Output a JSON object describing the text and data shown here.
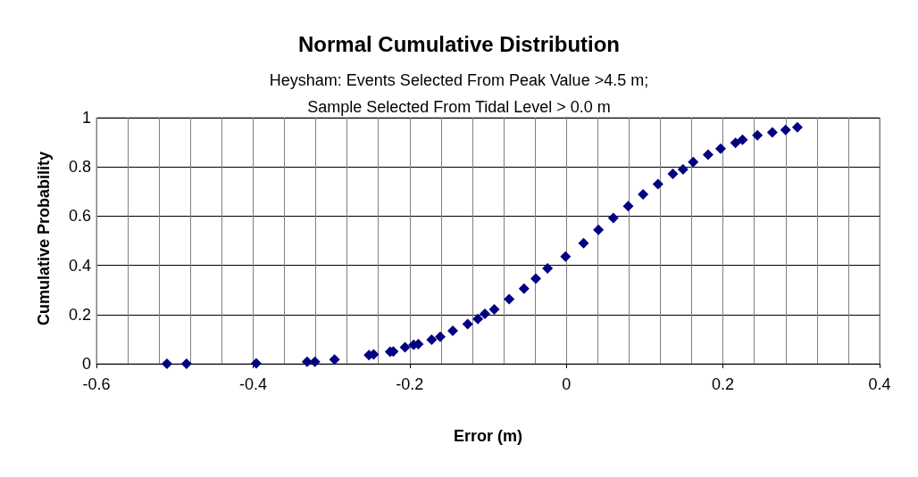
{
  "chart_data": {
    "type": "scatter",
    "title": "Normal Cumulative Distribution",
    "subtitle": "Heysham: Events Selected From Peak Value >4.5 m;\nSample Selected From Tidal Level > 0.0 m",
    "xlabel": "Error (m)",
    "ylabel": "Cumulative Probability",
    "x": [
      -0.51,
      -0.485,
      -0.396,
      -0.331,
      -0.321,
      -0.296,
      -0.252,
      -0.246,
      -0.225,
      -0.221,
      -0.206,
      -0.195,
      -0.189,
      -0.172,
      -0.161,
      -0.145,
      -0.126,
      -0.113,
      -0.104,
      -0.092,
      -0.073,
      -0.054,
      -0.039,
      -0.024,
      -0.001,
      0.022,
      0.041,
      0.06,
      0.079,
      0.098,
      0.117,
      0.136,
      0.149,
      0.162,
      0.181,
      0.197,
      0.216,
      0.225,
      0.244,
      0.263,
      0.28,
      0.295
    ],
    "series": [
      {
        "color": "#000080",
        "values": [
          0,
          0,
          0.002,
          0.008,
          0.008,
          0.017,
          0.035,
          0.038,
          0.049,
          0.05,
          0.067,
          0.077,
          0.08,
          0.098,
          0.11,
          0.134,
          0.161,
          0.182,
          0.203,
          0.221,
          0.263,
          0.305,
          0.346,
          0.388,
          0.436,
          0.49,
          0.544,
          0.592,
          0.64,
          0.688,
          0.73,
          0.772,
          0.79,
          0.82,
          0.85,
          0.874,
          0.898,
          0.91,
          0.928,
          0.94,
          0.95,
          0.961
        ]
      }
    ],
    "xlim": [
      -0.6,
      0.4
    ],
    "xticks": [
      -0.6,
      {
        "value": -0.56,
        "label": null
      },
      {
        "value": -0.52,
        "label": null
      },
      {
        "value": -0.48,
        "label": null
      },
      {
        "value": -0.44,
        "label": null
      },
      -0.4,
      {
        "value": -0.36,
        "label": null
      },
      {
        "value": -0.32,
        "label": null
      },
      {
        "value": -0.28,
        "label": null
      },
      {
        "value": -0.24,
        "label": null
      },
      -0.2,
      {
        "value": -0.16,
        "label": null
      },
      {
        "value": -0.12,
        "label": null
      },
      {
        "value": -0.08,
        "label": null
      },
      {
        "value": -0.04,
        "label": null
      },
      0,
      {
        "value": 0.04,
        "label": null
      },
      {
        "value": 0.08,
        "label": null
      },
      {
        "value": 0.12,
        "label": null
      },
      {
        "value": 0.16,
        "label": null
      },
      0.2,
      {
        "value": 0.24,
        "label": null
      },
      {
        "value": 0.28,
        "label": null
      },
      {
        "value": 0.32,
        "label": null
      },
      {
        "value": 0.36,
        "label": null
      },
      0.4
    ],
    "ylim": [
      0,
      1
    ],
    "yticks": [
      0,
      0.2,
      0.4,
      0.6,
      0.8,
      1
    ],
    "grid": true,
    "marker": "diamond"
  }
}
